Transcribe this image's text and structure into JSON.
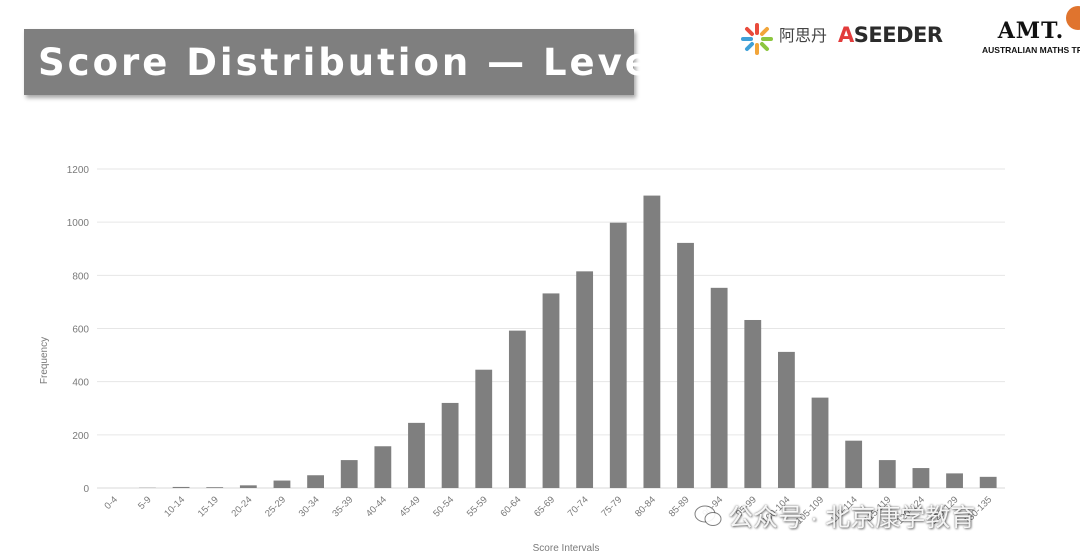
{
  "title": "Score Distribution — Level C",
  "logos": {
    "cn_brand": "阿思丹",
    "aseeder_accent": "A",
    "aseeder_rest": "SEEDER",
    "amt_mark": "AMT.",
    "amt_sub": "AUSTRALIAN MATHS TRUST"
  },
  "watermark": "公众号 · 北京康学教育",
  "colors": {
    "bar": "#7f7f7f",
    "grid": "#e6e6e6",
    "axis_text": "#7a7a7a",
    "banner": "#7f7f7f"
  },
  "chart_data": {
    "type": "bar",
    "title": "",
    "xlabel": "Score Intervals",
    "ylabel": "Frequency",
    "ylim": [
      0,
      1200
    ],
    "yticks": [
      0,
      200,
      400,
      600,
      800,
      1000,
      1200
    ],
    "grid": true,
    "categories": [
      "0-4",
      "5-9",
      "10-14",
      "15-19",
      "20-24",
      "25-29",
      "30-34",
      "35-39",
      "40-44",
      "45-49",
      "50-54",
      "55-59",
      "60-64",
      "65-69",
      "70-74",
      "75-79",
      "80-84",
      "85-89",
      "90-94",
      "95-99",
      "100-104",
      "105-109",
      "110-114",
      "115-119",
      "120-124",
      "125-129",
      "130-135"
    ],
    "values": [
      0,
      1,
      4,
      3,
      10,
      28,
      48,
      105,
      157,
      245,
      320,
      445,
      592,
      732,
      815,
      998,
      1100,
      922,
      753,
      632,
      512,
      340,
      178,
      105,
      75,
      55,
      42
    ]
  }
}
